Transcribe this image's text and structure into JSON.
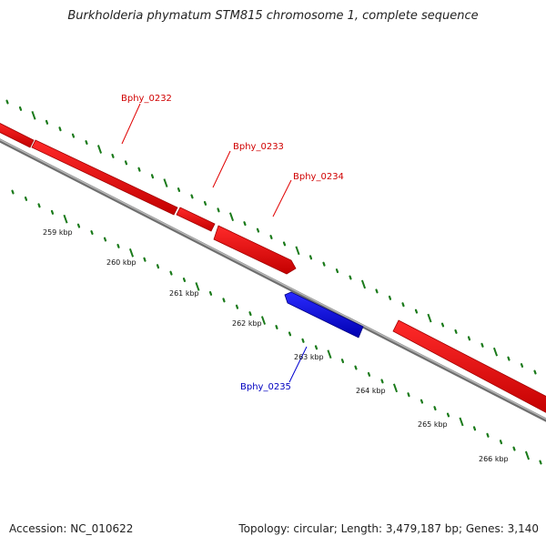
{
  "title": "Burkholderia phymatum STM815 chromosome 1, complete sequence",
  "footer": {
    "accession": "Accession: NC_010622",
    "summary": "Topology: circular; Length: 3,479,187 bp; Genes: 3,140"
  },
  "colors": {
    "forward_gene": "#ff0000",
    "reverse_gene": "#0000ff",
    "backbone": "#8a8a8a",
    "ticks": "#1a7a1a"
  },
  "genes": [
    {
      "name": "Bphy_0232",
      "strand": "forward",
      "color": "#d00000"
    },
    {
      "name": "Bphy_0233",
      "strand": "forward",
      "color": "#d00000"
    },
    {
      "name": "Bphy_0234",
      "strand": "forward",
      "color": "#d00000"
    },
    {
      "name": "Bphy_0235",
      "strand": "reverse",
      "color": "#0000c0"
    }
  ],
  "scale_labels": [
    "259 kbp",
    "260 kbp",
    "261 kbp",
    "262 kbp",
    "263 kbp",
    "264 kbp",
    "265 kbp",
    "266 kbp"
  ]
}
